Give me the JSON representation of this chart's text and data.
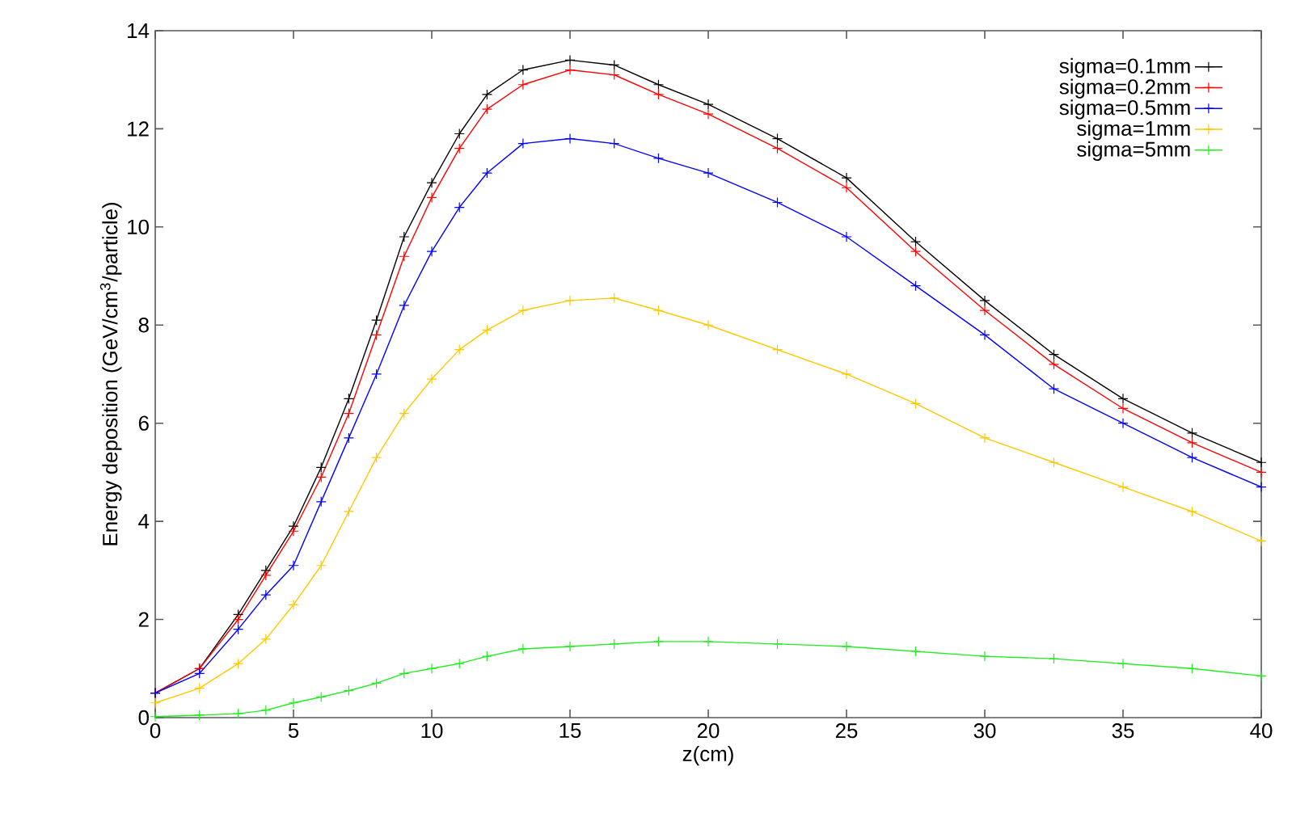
{
  "chart_data": {
    "type": "line",
    "xlabel": "z(cm)",
    "ylabel": "Energy deposition (GeV/cm$^{3}$/particle)",
    "x": [
      0,
      1.6,
      3,
      4,
      5,
      6,
      7,
      8,
      9,
      10,
      11,
      12,
      13.3,
      15,
      16.6,
      18.2,
      20,
      22.5,
      25,
      27.5,
      30,
      32.5,
      35,
      37.5,
      40
    ],
    "series": [
      {
        "name": "sigma=0.1mm",
        "color": "#000000",
        "values": [
          0.5,
          1.0,
          2.1,
          3.0,
          3.9,
          5.1,
          6.5,
          8.1,
          9.8,
          10.9,
          11.9,
          12.7,
          13.2,
          13.4,
          13.3,
          12.9,
          12.5,
          11.8,
          11.0,
          9.7,
          8.5,
          7.4,
          6.5,
          5.8,
          5.2
        ]
      },
      {
        "name": "sigma=0.2mm",
        "color": "#ff0000",
        "values": [
          0.5,
          1.0,
          2.0,
          2.9,
          3.8,
          4.9,
          6.2,
          7.8,
          9.4,
          10.6,
          11.6,
          12.4,
          12.9,
          13.2,
          13.1,
          12.7,
          12.3,
          11.6,
          10.8,
          9.5,
          8.3,
          7.2,
          6.3,
          5.6,
          5.0
        ]
      },
      {
        "name": "sigma=0.5mm",
        "color": "#0000ff",
        "values": [
          0.5,
          0.9,
          1.8,
          2.5,
          3.1,
          4.4,
          5.7,
          7.0,
          8.4,
          9.5,
          10.4,
          11.1,
          11.7,
          11.8,
          11.7,
          11.4,
          11.1,
          10.5,
          9.8,
          8.8,
          7.8,
          6.7,
          6.0,
          5.3,
          4.7
        ]
      },
      {
        "name": "sigma=1mm",
        "color": "#ffc800",
        "values": [
          0.3,
          0.6,
          1.1,
          1.6,
          2.3,
          3.1,
          4.2,
          5.3,
          6.2,
          6.9,
          7.5,
          7.9,
          8.3,
          8.5,
          8.55,
          8.3,
          8.0,
          7.5,
          7.0,
          6.4,
          5.7,
          5.2,
          4.7,
          4.2,
          3.6
        ]
      },
      {
        "name": "sigma=5mm",
        "color": "#22ee22",
        "values": [
          0.02,
          0.05,
          0.08,
          0.15,
          0.3,
          0.42,
          0.55,
          0.7,
          0.9,
          1.0,
          1.1,
          1.25,
          1.4,
          1.45,
          1.5,
          1.55,
          1.55,
          1.5,
          1.45,
          1.35,
          1.25,
          1.2,
          1.1,
          1.0,
          0.85
        ]
      }
    ],
    "xlim": [
      0,
      40
    ],
    "xticks": [
      0,
      5,
      10,
      15,
      20,
      25,
      30,
      35,
      40
    ],
    "ylim": [
      0,
      14
    ],
    "yticks": [
      0,
      2,
      4,
      6,
      8,
      10,
      12,
      14
    ],
    "legend": "top right",
    "marker": "cross",
    "line_style": "solid",
    "grid": false
  }
}
